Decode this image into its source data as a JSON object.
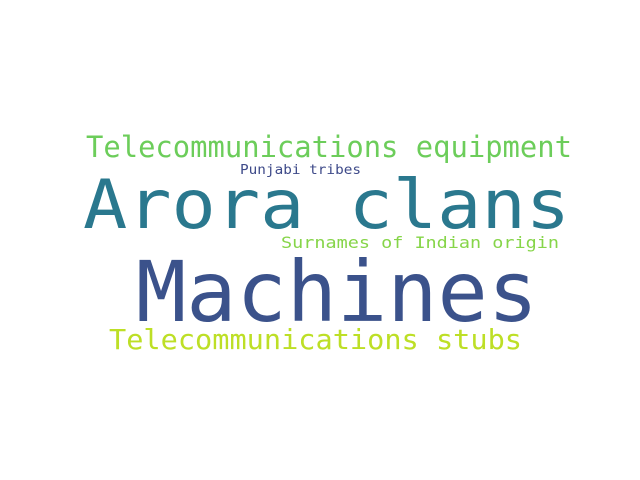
{
  "word_cloud": {
    "words": [
      {
        "text": "Telecommunications equipment",
        "color": "#6ccd5a"
      },
      {
        "text": "Punjabi tribes",
        "color": "#3e4a89"
      },
      {
        "text": "Arora clans",
        "color": "#2a788e"
      },
      {
        "text": "Surnames of Indian origin",
        "color": "#86d549"
      },
      {
        "text": "Machines",
        "color": "#3b528b"
      },
      {
        "text": "Telecommunications stubs",
        "color": "#bddf26"
      }
    ]
  }
}
